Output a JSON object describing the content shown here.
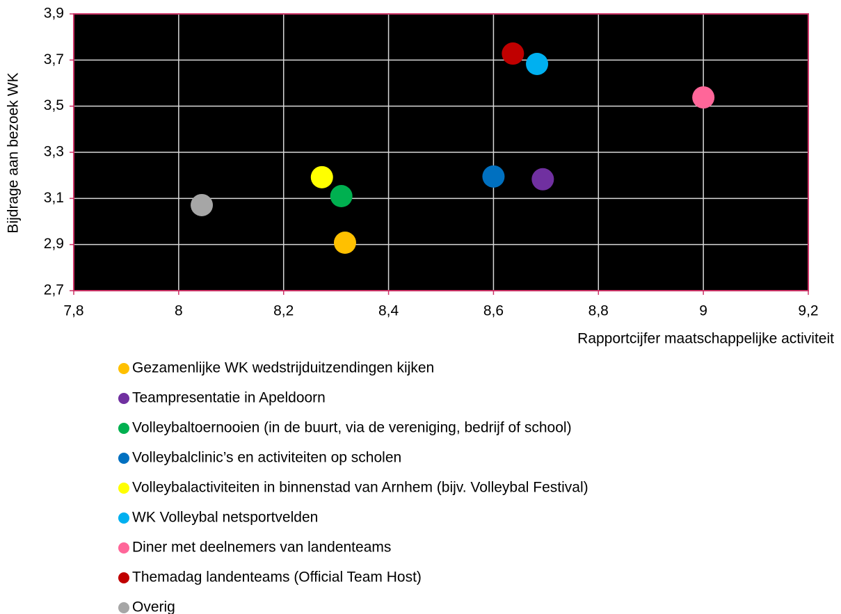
{
  "chart_data": {
    "type": "scatter",
    "xlabel": "Rapportcijfer maatschappelijke activiteit",
    "ylabel": "Bijdrage aan bezoek WK",
    "xlim": [
      7.8,
      9.2
    ],
    "xticks": [
      {
        "value": 7.8,
        "label": "7,8"
      },
      8,
      {
        "value": 8.2,
        "label": "8,2"
      },
      {
        "value": 8.4,
        "label": "8,4"
      },
      {
        "value": 8.6,
        "label": "8,6"
      },
      {
        "value": 8.8,
        "label": "8,8"
      },
      9,
      {
        "value": 9.2,
        "label": "9,2"
      }
    ],
    "ylim": [
      2.7,
      3.9
    ],
    "yticks": [
      {
        "value": 2.7,
        "label": "2,7"
      },
      {
        "value": 2.9,
        "label": "2,9"
      },
      {
        "value": 3.1,
        "label": "3,1"
      },
      {
        "value": 3.3,
        "label": "3,3"
      },
      {
        "value": 3.5,
        "label": "3,5"
      },
      {
        "value": 3.7,
        "label": "3,7"
      },
      {
        "value": 3.9,
        "label": "3,9"
      }
    ],
    "grid": true,
    "legend": "bottom",
    "series": [
      {
        "name": "Gezamenlijke WK wedstrijduitzendingen kijken",
        "color": "#ffc000",
        "x": [
          8.317
        ],
        "values": [
          2.908
        ]
      },
      {
        "name": "Teampresentatie in Apeldoorn",
        "color": "#7030a0",
        "x": [
          8.694
        ],
        "values": [
          3.183
        ]
      },
      {
        "name": "Volleybaltoernooien (in de buurt, via de vereniging, bedrijf of school)",
        "color": "#00b050",
        "x": [
          8.31
        ],
        "values": [
          3.11
        ]
      },
      {
        "name": "Volleybalclinic’s en activiteiten op scholen",
        "color": "#0070c0",
        "x": [
          8.6
        ],
        "values": [
          3.195
        ]
      },
      {
        "name": "Volleybalactiviteiten in binnenstad van Arnhem (bijv. Volleybal Festival)",
        "color": "#ffff00",
        "x": [
          8.273
        ],
        "values": [
          3.192
        ]
      },
      {
        "name": "WK Volleybal netsportvelden",
        "color": "#00b0f0",
        "x": [
          8.683
        ],
        "values": [
          3.683
        ]
      },
      {
        "name": "Diner met deelnemers van landenteams",
        "color": "#ff6699",
        "x": [
          9.0
        ],
        "values": [
          3.538
        ]
      },
      {
        "name": "Themadag landenteams (Official Team Host)",
        "color": "#c00000",
        "x": [
          8.637
        ],
        "values": [
          3.728
        ]
      },
      {
        "name": "Overig",
        "color": "#a6a6a6",
        "x": [
          8.044
        ],
        "values": [
          3.071
        ]
      }
    ]
  }
}
